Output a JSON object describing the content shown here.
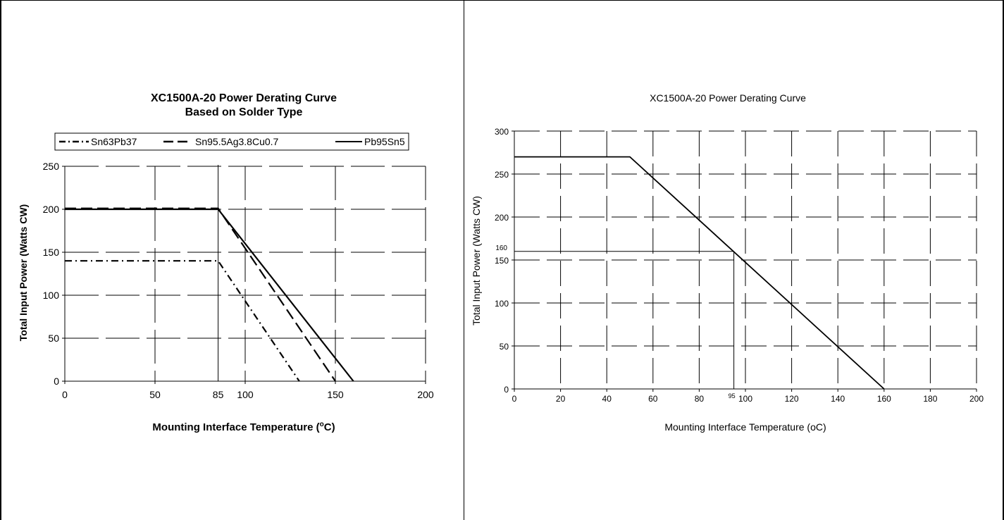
{
  "charts": [
    {
      "type": "line",
      "title_line1": "XC1500A-20 Power Derating Curve",
      "title_line2": "Based on Solder Type",
      "xlabel_text": "Mounting Interface Temperature (",
      "xlabel_sup": "o",
      "xlabel_end": "C)",
      "ylabel": "Total Input Power (Watts CW)",
      "xlim": [
        0,
        200
      ],
      "ylim": [
        0,
        250
      ],
      "xticks": [
        0,
        50,
        100,
        150,
        200
      ],
      "yticks": [
        0,
        50,
        100,
        150,
        200,
        250
      ],
      "grid": true,
      "legend_position": "top",
      "marker_x": 85,
      "marker_label": "85",
      "series": [
        {
          "name": "Sn63Pb37",
          "style": "dashdot",
          "points": [
            [
              0,
              140
            ],
            [
              85,
              140
            ],
            [
              130,
              0
            ]
          ]
        },
        {
          "name": "Sn95.5Ag3.8Cu0.7",
          "style": "dashed",
          "points": [
            [
              0,
              201
            ],
            [
              85,
              201
            ],
            [
              150,
              0
            ]
          ]
        },
        {
          "name": "Pb95Sn5",
          "style": "solid",
          "points": [
            [
              0,
              200
            ],
            [
              85,
              200
            ],
            [
              160,
              0
            ]
          ]
        }
      ]
    },
    {
      "type": "line",
      "title": "XC1500A-20 Power Derating Curve",
      "xlabel": "Mounting Interface Temperature (oC)",
      "ylabel": "Total Input Power (Watts CW)",
      "xlim": [
        0,
        200
      ],
      "ylim": [
        0,
        300
      ],
      "xticks": [
        0,
        20,
        40,
        60,
        80,
        100,
        120,
        140,
        160,
        180,
        200
      ],
      "yticks": [
        0,
        50,
        100,
        150,
        200,
        250,
        300
      ],
      "grid": true,
      "ref_x": 95,
      "ref_y": 160,
      "ref_x_label": "95",
      "ref_y_label": "160",
      "series": [
        {
          "style": "solid",
          "points": [
            [
              0,
              270
            ],
            [
              50,
              270
            ],
            [
              160,
              0
            ]
          ]
        }
      ]
    }
  ],
  "colors": {
    "line": "#000000",
    "background": "#ffffff"
  }
}
